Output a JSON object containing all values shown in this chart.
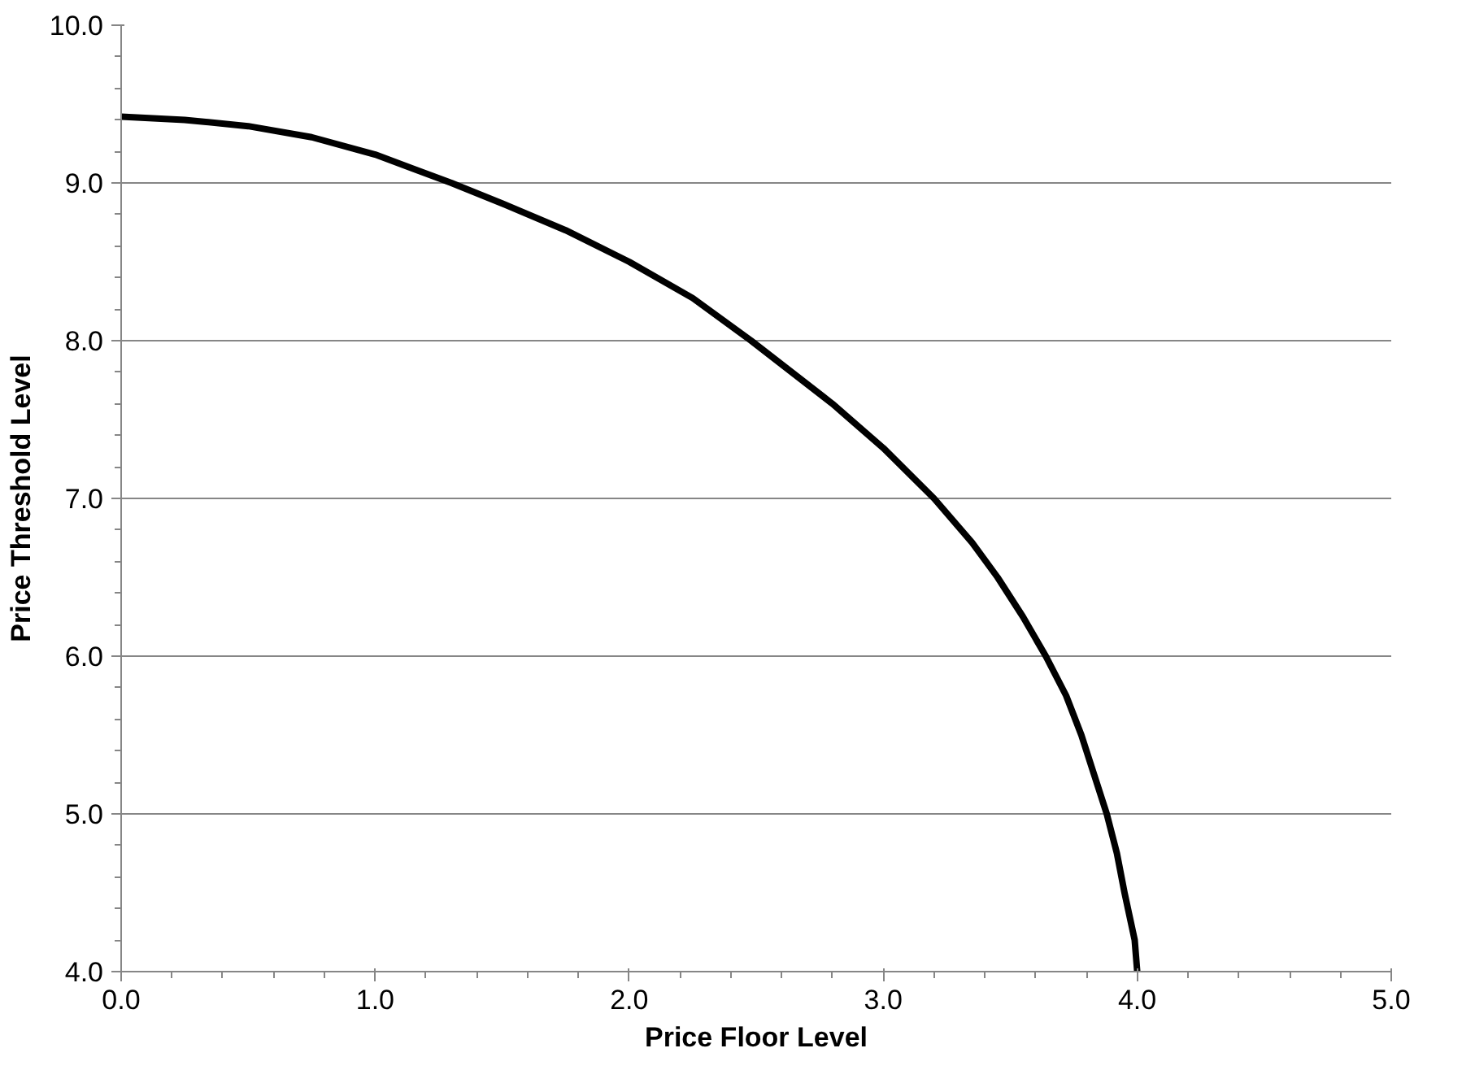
{
  "chart_data": {
    "type": "line",
    "xlabel": "Price Floor Level",
    "ylabel": "Price Threshold Level",
    "x": [
      0,
      0.25,
      0.5,
      0.75,
      1.0,
      1.3,
      1.5,
      1.75,
      2.0,
      2.25,
      2.48,
      2.8,
      3.0,
      3.2,
      3.35,
      3.45,
      3.55,
      3.64,
      3.72,
      3.78,
      3.83,
      3.88,
      3.92,
      3.95,
      3.97,
      3.99,
      4.0
    ],
    "series": [
      {
        "color": "#000000",
        "values": [
          9.42,
          9.4,
          9.36,
          9.29,
          9.18,
          9.0,
          8.87,
          8.7,
          8.5,
          8.27,
          8.0,
          7.6,
          7.32,
          7.0,
          6.72,
          6.5,
          6.25,
          6.0,
          5.75,
          5.5,
          5.25,
          5.0,
          4.75,
          4.5,
          4.35,
          4.2,
          4.0
        ]
      }
    ],
    "xlim": [
      0,
      5
    ],
    "ylim": [
      4,
      10
    ],
    "xticks": [
      {
        "value": 0,
        "label": "0.0"
      },
      {
        "value": 1,
        "label": "1.0"
      },
      {
        "value": 2,
        "label": "2.0"
      },
      {
        "value": 3,
        "label": "3.0"
      },
      {
        "value": 4,
        "label": "4.0"
      },
      {
        "value": 5,
        "label": "5.0"
      }
    ],
    "yticks": [
      {
        "value": 4,
        "label": "4.0"
      },
      {
        "value": 5,
        "label": "5.0"
      },
      {
        "value": 6,
        "label": "6.0"
      },
      {
        "value": 7,
        "label": "7.0"
      },
      {
        "value": 8,
        "label": "8.0"
      },
      {
        "value": 9,
        "label": "9.0"
      },
      {
        "value": 10,
        "label": "10.0"
      }
    ],
    "grid": "y",
    "marker": "none",
    "line_style": "solid"
  }
}
